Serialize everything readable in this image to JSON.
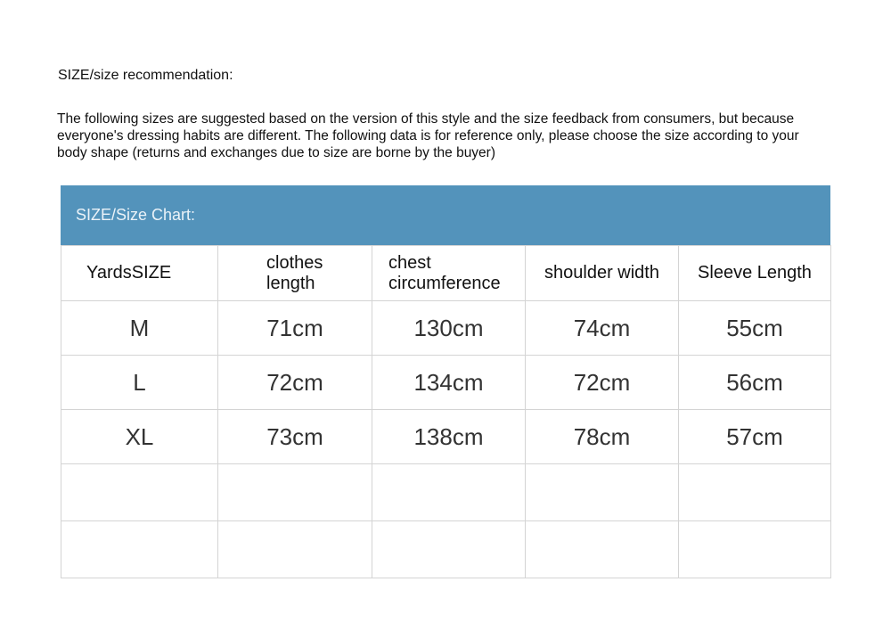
{
  "title": "SIZE/size recommendation:",
  "intro": "The following sizes are suggested based on the version of this style and the size feedback from consumers, but because everyone's dressing habits are different. The following data is for reference only, please choose the size according to your body shape (returns and exchanges due to size are borne by the buyer)",
  "chart_title": "SIZE/Size Chart:",
  "header_color": "#5393bb",
  "headers": [
    "YardsSIZE",
    "clothes length",
    "chest circumference",
    "shoulder width",
    "Sleeve Length"
  ],
  "rows": [
    [
      "M",
      "71cm",
      "130cm",
      "74cm",
      "55cm"
    ],
    [
      "L",
      "72cm",
      "134cm",
      "72cm",
      "56cm"
    ],
    [
      "XL",
      "73cm",
      "138cm",
      "78cm",
      "57cm"
    ]
  ]
}
